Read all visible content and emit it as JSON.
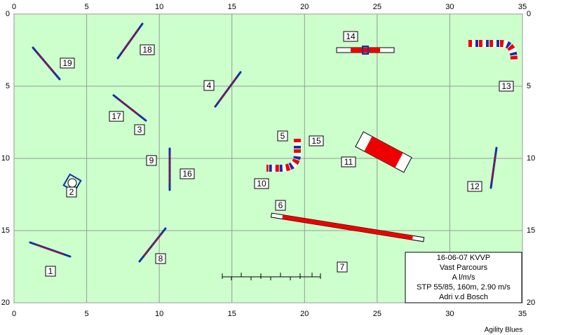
{
  "x_ticks": [
    0,
    5,
    10,
    15,
    20,
    25,
    30,
    35
  ],
  "y_ticks": [
    0,
    5,
    10,
    15,
    20
  ],
  "obstacle_labels": [
    "1",
    "2",
    "3",
    "4",
    "5",
    "6",
    "7",
    "8",
    "9",
    "10",
    "11",
    "12",
    "13",
    "14",
    "15",
    "16",
    "17",
    "18",
    "19"
  ],
  "info_box": [
    "16-06-07 KVVP",
    "Vast Parcours",
    "A l/m/s",
    "STP 55/85, 160m, 2.90 m/s",
    "Adri v.d Bosch"
  ],
  "footer": "Agility Blues"
}
